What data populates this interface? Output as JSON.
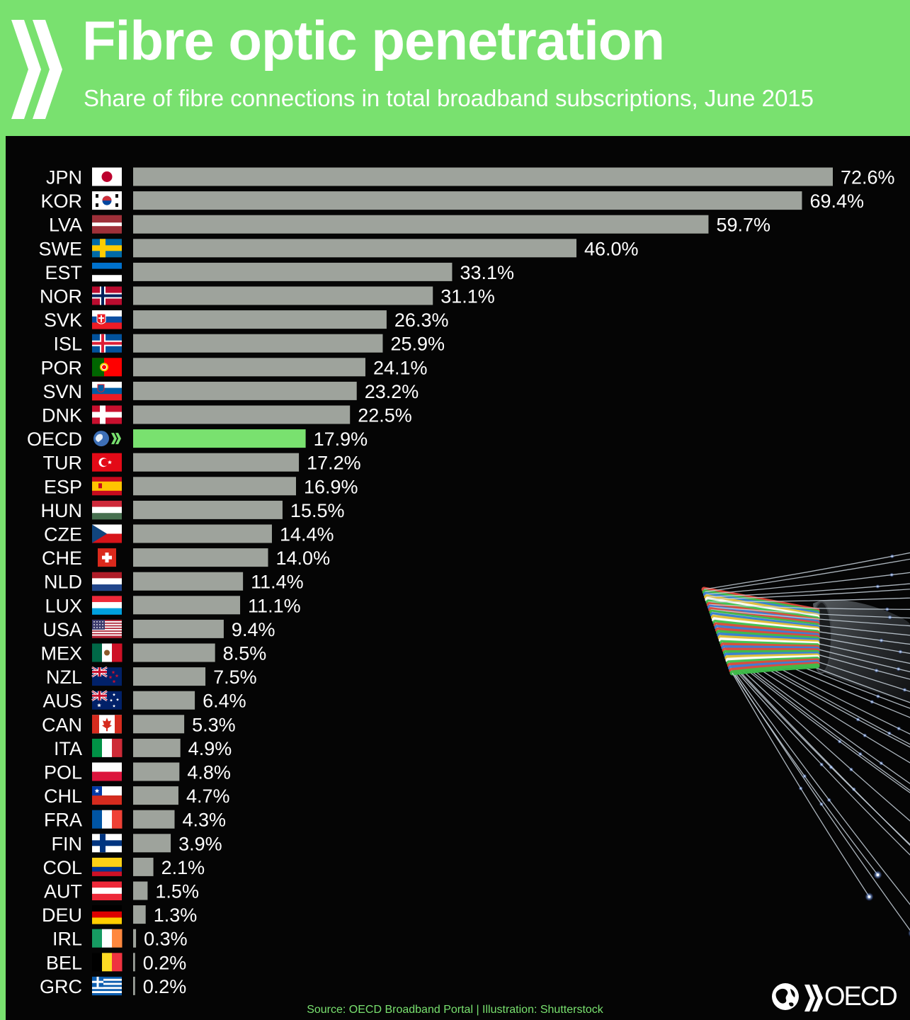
{
  "header": {
    "title": "Fibre optic penetration",
    "subtitle": "Share of fibre connections in total broadband subscriptions, June 2015"
  },
  "footer": {
    "source": "Source: OECD Broadband Portal | Illustration: Shutterstock",
    "brand": "OECD"
  },
  "colors": {
    "header_bg": "#79e16f",
    "panel_bg": "#050505",
    "bar": "#9ea39c",
    "highlight_bar": "#79e16f",
    "text": "#ffffff"
  },
  "icons": [
    "oecd-chevrons-icon",
    "fibre-cable-illustration",
    "oecd-globe-icon"
  ],
  "chart_data": {
    "type": "bar",
    "orientation": "horizontal",
    "title": "Fibre optic penetration",
    "subtitle": "Share of fibre connections in total broadband subscriptions, June 2015",
    "categories": [
      "JPN",
      "KOR",
      "LVA",
      "SWE",
      "EST",
      "NOR",
      "SVK",
      "ISL",
      "POR",
      "SVN",
      "DNK",
      "OECD",
      "TUR",
      "ESP",
      "HUN",
      "CZE",
      "CHE",
      "NLD",
      "LUX",
      "USA",
      "MEX",
      "NZL",
      "AUS",
      "CAN",
      "ITA",
      "POL",
      "CHL",
      "FRA",
      "FIN",
      "COL",
      "AUT",
      "DEU",
      "IRL",
      "BEL",
      "GRC"
    ],
    "values": [
      72.6,
      69.4,
      59.7,
      46.0,
      33.1,
      31.1,
      26.3,
      25.9,
      24.1,
      23.2,
      22.5,
      17.9,
      17.2,
      16.9,
      15.5,
      14.4,
      14.0,
      11.4,
      11.1,
      9.4,
      8.5,
      7.5,
      6.4,
      5.3,
      4.9,
      4.8,
      4.7,
      4.3,
      3.9,
      2.1,
      1.5,
      1.3,
      0.3,
      0.2,
      0.2
    ],
    "labels": [
      "72.6%",
      "69.4%",
      "59.7%",
      "46.0%",
      "33.1%",
      "31.1%",
      "26.3%",
      "25.9%",
      "24.1%",
      "23.2%",
      "22.5%",
      "17.9%",
      "17.2%",
      "16.9%",
      "15.5%",
      "14.4%",
      "14.0%",
      "11.4%",
      "11.1%",
      "9.4%",
      "8.5%",
      "7.5%",
      "6.4%",
      "5.3%",
      "4.9%",
      "4.8%",
      "4.7%",
      "4.3%",
      "3.9%",
      "2.1%",
      "1.5%",
      "1.3%",
      "0.3%",
      "0.2%",
      "0.2%"
    ],
    "highlight": "OECD",
    "xlim": [
      0,
      72.6
    ],
    "unit": "%",
    "grid": false,
    "legend": "none"
  }
}
